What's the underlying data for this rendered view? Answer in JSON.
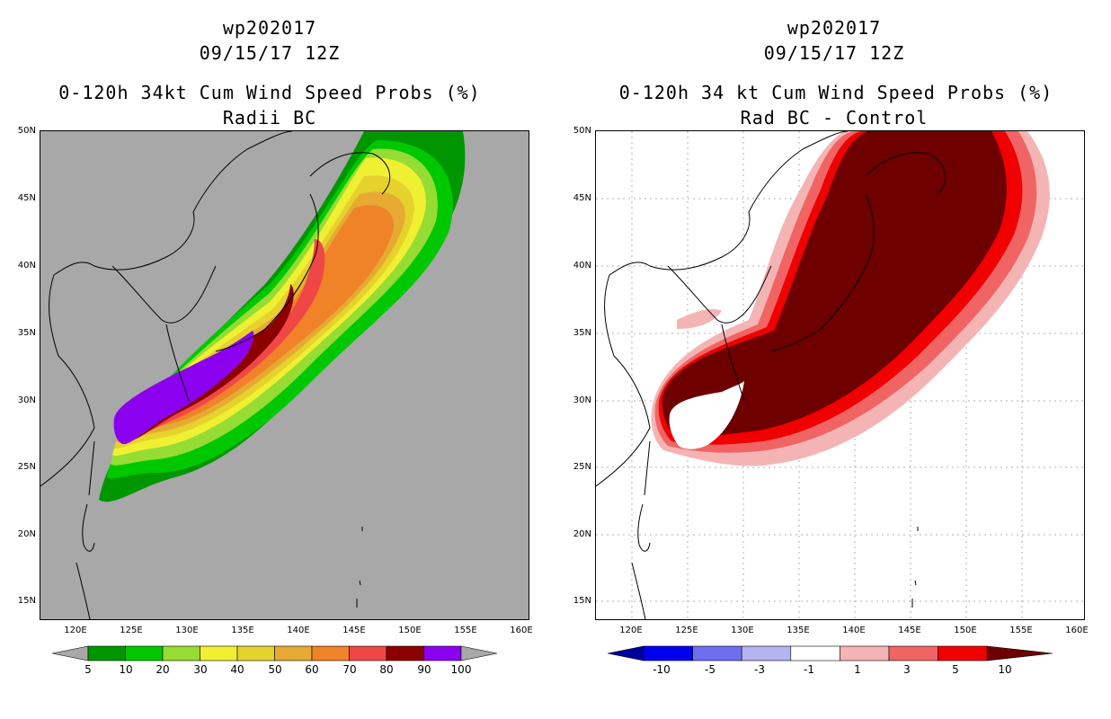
{
  "left_panel": {
    "storm_id": "wp202017",
    "datetime": "09/15/17 12Z",
    "title": "0-120h 34kt Cum Wind Speed Probs (%)",
    "subtitle": "Radii BC",
    "background_color": "#a8a8a8",
    "colorbar": {
      "labels": [
        "5",
        "10",
        "20",
        "30",
        "40",
        "50",
        "60",
        "70",
        "80",
        "90",
        "100"
      ],
      "colors": [
        "#009600",
        "#00c800",
        "#96dc32",
        "#f0f032",
        "#e6d22d",
        "#e6aa32",
        "#f08228",
        "#f04646",
        "#8c0000",
        "#8c00f0"
      ]
    }
  },
  "right_panel": {
    "storm_id": "wp202017",
    "datetime": "09/15/17 12Z",
    "title": "0-120h 34 kt Cum Wind Speed Probs (%)",
    "subtitle": "Rad BC - Control",
    "background_color": "#ffffff",
    "colorbar": {
      "labels": [
        "-10",
        "-5",
        "-3",
        "-1",
        "1",
        "3",
        "5",
        "10"
      ],
      "colors": [
        "#0000a0",
        "#0000f0",
        "#6e6ef0",
        "#b4b4f0",
        "#ffffff",
        "#f5b4b4",
        "#f06464",
        "#f00000",
        "#6e0000"
      ]
    }
  },
  "axes": {
    "lat_labels": [
      "50N",
      "45N",
      "40N",
      "35N",
      "30N",
      "25N",
      "20N",
      "15N"
    ],
    "lon_labels": [
      "120E",
      "125E",
      "130E",
      "135E",
      "140E",
      "145E",
      "150E",
      "155E",
      "160E"
    ]
  }
}
